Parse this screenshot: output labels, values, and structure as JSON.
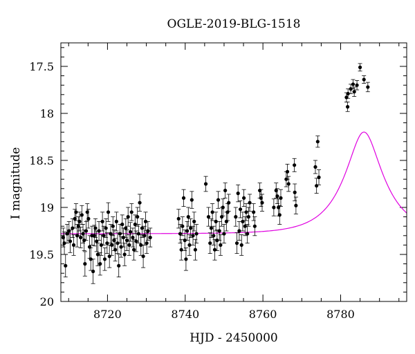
{
  "chart_data": {
    "type": "scatter",
    "title": "OGLE-2019-BLG-1518",
    "xlabel": "HJD - 2450000",
    "ylabel": "I magnitude",
    "xlim": [
      8708,
      8797
    ],
    "ylim": [
      20,
      17.25
    ],
    "y_inverted": true,
    "x_ticks": [
      8720,
      8740,
      8760,
      8780
    ],
    "y_ticks": [
      17.5,
      18,
      18.5,
      19,
      19.5,
      20
    ],
    "x_tick_labels": [
      "8720",
      "8740",
      "8760",
      "8780"
    ],
    "y_tick_labels": [
      "17.5",
      "18",
      "18.5",
      "19",
      "19.5",
      "20"
    ],
    "grid": false,
    "series": [
      {
        "kind": "points-with-errorbars",
        "color": "#000000",
        "points": [
          [
            8708.6,
            19.32,
            0.1
          ],
          [
            8708.9,
            19.38,
            0.12
          ],
          [
            8709.2,
            19.62,
            0.12
          ],
          [
            8709.6,
            19.28,
            0.1
          ],
          [
            8710.1,
            19.25,
            0.1
          ],
          [
            8710.4,
            19.36,
            0.12
          ],
          [
            8711.0,
            19.22,
            0.1
          ],
          [
            8711.3,
            19.4,
            0.11
          ],
          [
            8711.6,
            19.12,
            0.1
          ],
          [
            8711.9,
            19.05,
            0.09
          ],
          [
            8712.2,
            19.3,
            0.12
          ],
          [
            8712.5,
            19.2,
            0.1
          ],
          [
            8712.8,
            19.15,
            0.1
          ],
          [
            8713.1,
            19.32,
            0.11
          ],
          [
            8713.4,
            19.08,
            0.1
          ],
          [
            8713.7,
            19.28,
            0.1
          ],
          [
            8714.0,
            19.35,
            0.11
          ],
          [
            8714.2,
            19.6,
            0.13
          ],
          [
            8714.5,
            19.25,
            0.1
          ],
          [
            8714.8,
            19.05,
            0.09
          ],
          [
            8715.1,
            19.12,
            0.1
          ],
          [
            8715.4,
            19.42,
            0.12
          ],
          [
            8715.7,
            19.55,
            0.12
          ],
          [
            8716.0,
            19.3,
            0.1
          ],
          [
            8716.3,
            19.68,
            0.13
          ],
          [
            8716.6,
            19.3,
            0.11
          ],
          [
            8716.9,
            19.22,
            0.1
          ],
          [
            8717.2,
            19.36,
            0.11
          ],
          [
            8717.5,
            19.5,
            0.12
          ],
          [
            8717.8,
            19.25,
            0.1
          ],
          [
            8718.1,
            19.6,
            0.12
          ],
          [
            8718.4,
            19.4,
            0.11
          ],
          [
            8718.7,
            19.15,
            0.1
          ],
          [
            8719.0,
            19.3,
            0.1
          ],
          [
            8719.3,
            19.55,
            0.12
          ],
          [
            8719.6,
            19.22,
            0.1
          ],
          [
            8719.9,
            19.38,
            0.11
          ],
          [
            8720.2,
            19.05,
            0.1
          ],
          [
            8720.5,
            19.52,
            0.12
          ],
          [
            8720.8,
            19.28,
            0.1
          ],
          [
            8721.1,
            19.4,
            0.11
          ],
          [
            8721.4,
            19.2,
            0.1
          ],
          [
            8721.7,
            19.35,
            0.11
          ],
          [
            8722.0,
            19.45,
            0.12
          ],
          [
            8722.3,
            19.15,
            0.1
          ],
          [
            8722.6,
            19.38,
            0.11
          ],
          [
            8722.9,
            19.62,
            0.12
          ],
          [
            8723.2,
            19.28,
            0.1
          ],
          [
            8723.5,
            19.42,
            0.11
          ],
          [
            8723.8,
            19.18,
            0.1
          ],
          [
            8724.1,
            19.32,
            0.1
          ],
          [
            8724.4,
            19.5,
            0.12
          ],
          [
            8724.7,
            19.22,
            0.1
          ],
          [
            8725.0,
            19.35,
            0.11
          ],
          [
            8725.3,
            19.1,
            0.1
          ],
          [
            8725.6,
            19.4,
            0.11
          ],
          [
            8725.9,
            19.26,
            0.1
          ],
          [
            8726.2,
            19.05,
            0.09
          ],
          [
            8726.5,
            19.32,
            0.1
          ],
          [
            8726.8,
            19.45,
            0.11
          ],
          [
            8727.1,
            19.18,
            0.1
          ],
          [
            8727.4,
            19.36,
            0.11
          ],
          [
            8727.7,
            19.1,
            0.1
          ],
          [
            8728.0,
            19.28,
            0.1
          ],
          [
            8728.3,
            18.95,
            0.09
          ],
          [
            8728.6,
            19.4,
            0.11
          ],
          [
            8728.9,
            19.22,
            0.1
          ],
          [
            8729.2,
            19.52,
            0.12
          ],
          [
            8729.5,
            19.3,
            0.1
          ],
          [
            8729.8,
            19.15,
            0.1
          ],
          [
            8730.1,
            19.38,
            0.11
          ],
          [
            8730.4,
            19.25,
            0.1
          ],
          [
            8731.0,
            19.32,
            0.1
          ],
          [
            8738.3,
            19.12,
            0.1
          ],
          [
            8738.7,
            19.28,
            0.1
          ],
          [
            8739.0,
            19.45,
            0.11
          ],
          [
            8739.3,
            19.2,
            0.1
          ],
          [
            8739.6,
            18.9,
            0.09
          ],
          [
            8739.9,
            19.35,
            0.11
          ],
          [
            8740.2,
            19.55,
            0.12
          ],
          [
            8740.5,
            19.25,
            0.1
          ],
          [
            8740.8,
            19.1,
            0.1
          ],
          [
            8741.1,
            19.4,
            0.11
          ],
          [
            8741.4,
            19.22,
            0.1
          ],
          [
            8741.7,
            18.92,
            0.09
          ],
          [
            8742.0,
            19.3,
            0.1
          ],
          [
            8742.3,
            19.15,
            0.1
          ],
          [
            8742.6,
            19.45,
            0.11
          ],
          [
            8742.9,
            19.28,
            0.1
          ],
          [
            8745.3,
            18.75,
            0.08
          ],
          [
            8746.0,
            19.1,
            0.1
          ],
          [
            8746.4,
            19.38,
            0.11
          ],
          [
            8746.7,
            19.22,
            0.1
          ],
          [
            8747.0,
            19.05,
            0.09
          ],
          [
            8747.3,
            19.3,
            0.1
          ],
          [
            8747.6,
            19.45,
            0.11
          ],
          [
            8747.9,
            19.15,
            0.1
          ],
          [
            8748.2,
            19.35,
            0.11
          ],
          [
            8748.5,
            18.92,
            0.09
          ],
          [
            8748.8,
            19.25,
            0.1
          ],
          [
            8749.1,
            19.4,
            0.11
          ],
          [
            8749.4,
            19.1,
            0.1
          ],
          [
            8749.7,
            19.0,
            0.09
          ],
          [
            8750.0,
            19.28,
            0.1
          ],
          [
            8750.3,
            18.82,
            0.08
          ],
          [
            8750.6,
            19.15,
            0.1
          ],
          [
            8750.9,
            19.05,
            0.09
          ],
          [
            8751.2,
            18.95,
            0.09
          ],
          [
            8753.0,
            19.1,
            0.1
          ],
          [
            8753.3,
            19.38,
            0.11
          ],
          [
            8753.6,
            18.85,
            0.09
          ],
          [
            8753.9,
            19.25,
            0.1
          ],
          [
            8754.2,
            19.02,
            0.09
          ],
          [
            8754.5,
            19.4,
            0.11
          ],
          [
            8754.8,
            19.15,
            0.1
          ],
          [
            8755.1,
            18.9,
            0.09
          ],
          [
            8755.4,
            19.2,
            0.1
          ],
          [
            8755.7,
            19.05,
            0.09
          ],
          [
            8756.0,
            19.28,
            0.1
          ],
          [
            8756.3,
            19.1,
            0.1
          ],
          [
            8756.6,
            18.95,
            0.09
          ],
          [
            8757.6,
            19.05,
            0.09
          ],
          [
            8757.9,
            19.2,
            0.1
          ],
          [
            8759.2,
            18.82,
            0.08
          ],
          [
            8759.5,
            18.9,
            0.09
          ],
          [
            8759.8,
            18.95,
            0.09
          ],
          [
            8762.8,
            19.0,
            0.09
          ],
          [
            8763.4,
            18.82,
            0.08
          ],
          [
            8763.7,
            18.88,
            0.08
          ],
          [
            8764.0,
            19.0,
            0.09
          ],
          [
            8764.3,
            19.08,
            0.1
          ],
          [
            8764.6,
            18.9,
            0.09
          ],
          [
            8766.0,
            18.7,
            0.08
          ],
          [
            8766.3,
            18.62,
            0.08
          ],
          [
            8766.6,
            18.75,
            0.08
          ],
          [
            8768.1,
            18.55,
            0.07
          ],
          [
            8768.2,
            18.84,
            0.09
          ],
          [
            8768.5,
            18.98,
            0.09
          ],
          [
            8773.5,
            18.57,
            0.07
          ],
          [
            8773.8,
            18.77,
            0.08
          ],
          [
            8774.1,
            18.3,
            0.06
          ],
          [
            8774.4,
            18.68,
            0.08
          ],
          [
            8781.5,
            17.83,
            0.05
          ],
          [
            8781.8,
            17.93,
            0.05
          ],
          [
            8781.9,
            17.79,
            0.05
          ],
          [
            8782.6,
            17.74,
            0.05
          ],
          [
            8783.2,
            17.69,
            0.05
          ],
          [
            8783.5,
            17.77,
            0.05
          ],
          [
            8784.2,
            17.7,
            0.05
          ],
          [
            8785.0,
            17.51,
            0.04
          ],
          [
            8786.0,
            17.64,
            0.04
          ],
          [
            8787.0,
            17.72,
            0.05
          ]
        ]
      },
      {
        "kind": "model-curve",
        "color": "#e000e0",
        "baseline_mag": 19.28,
        "t0": 8786.0,
        "tE": 9.6,
        "u0": 0.39
      }
    ]
  }
}
